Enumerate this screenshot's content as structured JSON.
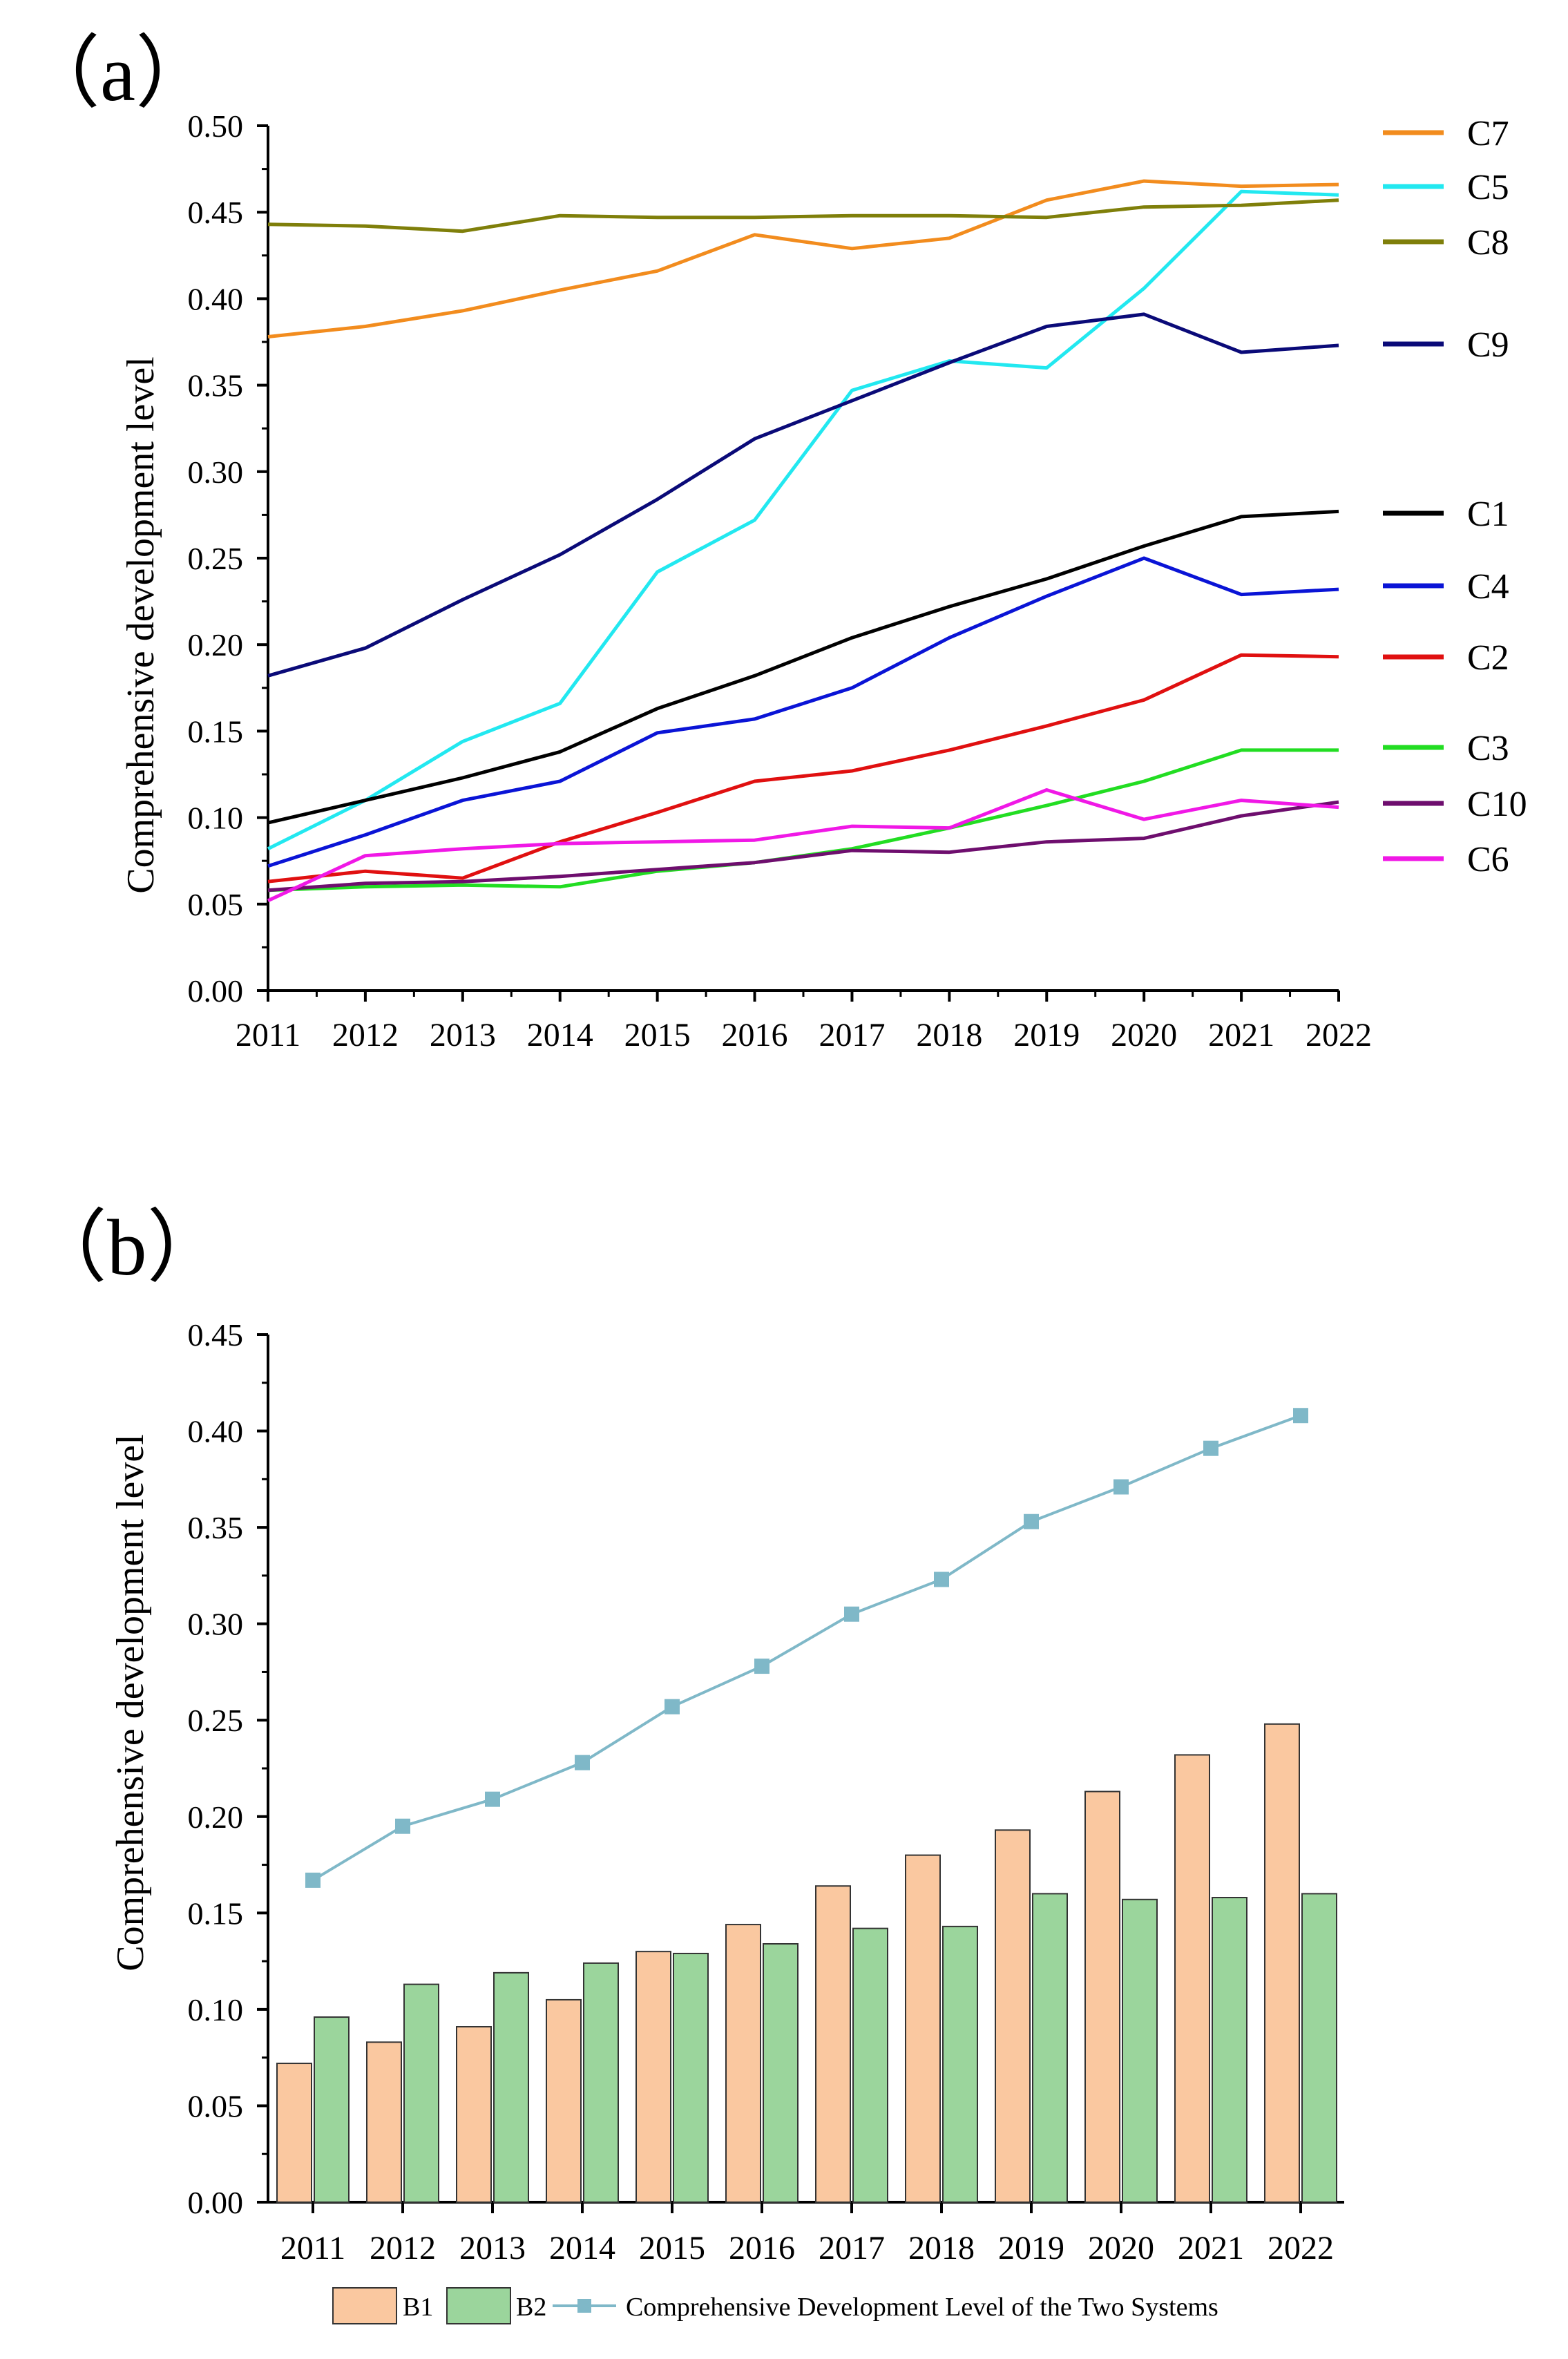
{
  "chart_data": [
    {
      "panel_label": "（a）",
      "type": "line",
      "title": "",
      "xlabel": "",
      "ylabel": "Comprehensive development level",
      "x": [
        "2011",
        "2012",
        "2013",
        "2014",
        "2015",
        "2016",
        "2017",
        "2018",
        "2019",
        "2020",
        "2021",
        "2022"
      ],
      "ylim": [
        0,
        0.5
      ],
      "yticks": [
        "0.00",
        "0.05",
        "0.10",
        "0.15",
        "0.20",
        "0.25",
        "0.30",
        "0.35",
        "0.40",
        "0.45",
        "0.50"
      ],
      "grid": false,
      "legend_position": "right",
      "series": [
        {
          "name": "C7",
          "color": "#F28C1E",
          "values": [
            0.378,
            0.384,
            0.393,
            0.405,
            0.416,
            0.437,
            0.429,
            0.435,
            0.457,
            0.468,
            0.465,
            0.466
          ]
        },
        {
          "name": "C5",
          "color": "#22E8F0",
          "values": [
            0.082,
            0.11,
            0.144,
            0.166,
            0.242,
            0.272,
            0.347,
            0.364,
            0.36,
            0.406,
            0.462,
            0.46
          ]
        },
        {
          "name": "C8",
          "color": "#7F7F0A",
          "values": [
            0.443,
            0.442,
            0.439,
            0.448,
            0.447,
            0.447,
            0.448,
            0.448,
            0.447,
            0.453,
            0.454,
            0.457
          ]
        },
        {
          "name": "C9",
          "color": "#0A0A78",
          "values": [
            0.182,
            0.198,
            0.226,
            0.252,
            0.284,
            0.319,
            0.341,
            0.363,
            0.384,
            0.391,
            0.369,
            0.373
          ]
        },
        {
          "name": "C1",
          "color": "#000000",
          "values": [
            0.097,
            0.11,
            0.123,
            0.138,
            0.163,
            0.182,
            0.204,
            0.222,
            0.238,
            0.257,
            0.274,
            0.277
          ]
        },
        {
          "name": "C4",
          "color": "#0A14D6",
          "values": [
            0.072,
            0.09,
            0.11,
            0.121,
            0.149,
            0.157,
            0.175,
            0.204,
            0.228,
            0.25,
            0.229,
            0.232
          ]
        },
        {
          "name": "C2",
          "color": "#E01010",
          "values": [
            0.063,
            0.069,
            0.065,
            0.086,
            0.103,
            0.121,
            0.127,
            0.139,
            0.153,
            0.168,
            0.194,
            0.193
          ]
        },
        {
          "name": "C3",
          "color": "#22DD22",
          "values": [
            0.058,
            0.06,
            0.061,
            0.06,
            0.069,
            0.074,
            0.082,
            0.094,
            0.107,
            0.121,
            0.139,
            0.139
          ]
        },
        {
          "name": "C10",
          "color": "#6E0E6E",
          "values": [
            0.058,
            0.062,
            0.063,
            0.066,
            0.07,
            0.074,
            0.081,
            0.08,
            0.086,
            0.088,
            0.101,
            0.109
          ]
        },
        {
          "name": "C6",
          "color": "#F018E6",
          "values": [
            0.052,
            0.078,
            0.082,
            0.085,
            0.086,
            0.087,
            0.095,
            0.094,
            0.116,
            0.099,
            0.11,
            0.106
          ]
        }
      ]
    },
    {
      "panel_label": "（b）",
      "type": "bar",
      "title": "",
      "xlabel": "",
      "ylabel": "Comprehensive development level",
      "categories": [
        "2011",
        "2012",
        "2013",
        "2014",
        "2015",
        "2016",
        "2017",
        "2018",
        "2019",
        "2020",
        "2021",
        "2022"
      ],
      "ylim": [
        0,
        0.45
      ],
      "yticks": [
        "0.00",
        "0.05",
        "0.10",
        "0.15",
        "0.20",
        "0.25",
        "0.30",
        "0.35",
        "0.40",
        "0.45"
      ],
      "grid": false,
      "legend_position": "bottom",
      "series": [
        {
          "name": "B1",
          "kind": "bar",
          "color": "#FAC8A0",
          "values": [
            0.072,
            0.083,
            0.091,
            0.105,
            0.13,
            0.144,
            0.164,
            0.18,
            0.193,
            0.213,
            0.232,
            0.248
          ]
        },
        {
          "name": "B2",
          "kind": "bar",
          "color": "#9BD59C",
          "values": [
            0.096,
            0.113,
            0.119,
            0.124,
            0.129,
            0.134,
            0.142,
            0.143,
            0.16,
            0.157,
            0.158,
            0.16
          ]
        },
        {
          "name": "Comprehensive Development Level of the Two Systems",
          "kind": "line",
          "marker": "square",
          "color": "#7FB8C8",
          "values": [
            0.167,
            0.195,
            0.209,
            0.228,
            0.257,
            0.278,
            0.305,
            0.323,
            0.353,
            0.371,
            0.391,
            0.408
          ]
        }
      ]
    }
  ]
}
